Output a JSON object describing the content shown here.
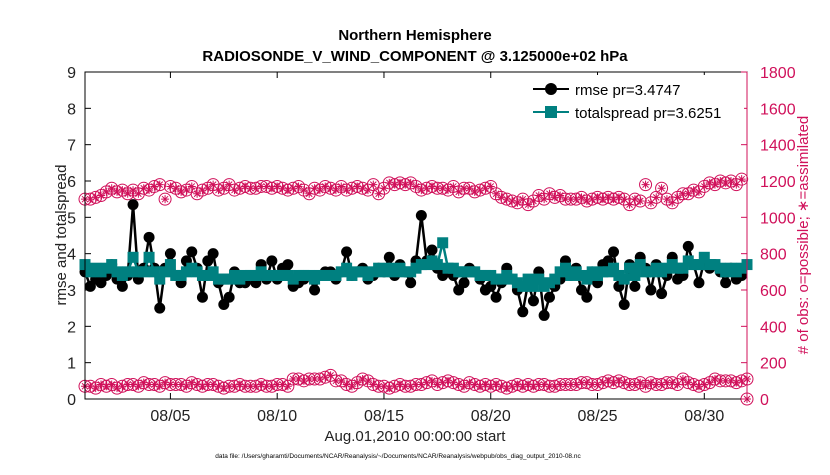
{
  "chart_data": {
    "type": "line",
    "title": "Northern Hemisphere",
    "subtitle": "RADIOSONDE_V_WIND_COMPONENT @ 3.125000e+02 hPa",
    "xlabel": "Aug.01,2010 00:00:00 start",
    "ylabel": "rmse and totalspread",
    "ylabel_right": "# of obs: o=possible; ∗=assimilated",
    "footnote": "data file: /Users/gharamti/Documents/NCAR/Reanalysis/~/Documents/NCAR/Reanalysis/webpub/obs_diag_output_2010-08.nc",
    "xlim": [
      1,
      32
    ],
    "ylim": [
      0,
      9
    ],
    "ylim_right": [
      0,
      1800
    ],
    "x_tick_labels": [
      "08/05",
      "08/10",
      "08/15",
      "08/20",
      "08/25",
      "08/30"
    ],
    "x_tick_values": [
      5,
      10,
      15,
      20,
      25,
      30
    ],
    "y_tick_labels": [
      "0",
      "1",
      "2",
      "3",
      "4",
      "5",
      "6",
      "7",
      "8",
      "9"
    ],
    "y_tick_values": [
      0,
      1,
      2,
      3,
      4,
      5,
      6,
      7,
      8,
      9
    ],
    "y_right_tick_labels": [
      "0",
      "200",
      "400",
      "600",
      "800",
      "1000",
      "1200",
      "1400",
      "1600",
      "1800"
    ],
    "y_right_tick_values": [
      0,
      200,
      400,
      600,
      800,
      1000,
      1200,
      1400,
      1600,
      1800
    ],
    "legend_position": "top-right",
    "x_step_days": 0.25,
    "x_start_day": 1,
    "series": [
      {
        "name": "rmse",
        "legend_label": "rmse pr=3.4747",
        "color": "#000000",
        "marker": "circle",
        "axis": "left",
        "values": [
          3.5,
          3.1,
          3.3,
          3.2,
          3.4,
          3.7,
          3.3,
          3.1,
          3.4,
          5.35,
          3.3,
          3.6,
          4.45,
          3.6,
          2.5,
          3.6,
          4.0,
          3.4,
          3.2,
          3.8,
          4.05,
          3.6,
          2.8,
          3.8,
          4.0,
          3.2,
          2.6,
          2.8,
          3.5,
          3.2,
          3.2,
          3.4,
          3.2,
          3.7,
          3.3,
          3.8,
          3.3,
          3.6,
          3.7,
          3.1,
          3.2,
          3.3,
          3.4,
          3.0,
          3.4,
          3.5,
          3.5,
          3.3,
          3.5,
          4.05,
          3.4,
          3.5,
          3.6,
          3.3,
          3.4,
          3.6,
          3.5,
          3.9,
          3.4,
          3.7,
          3.5,
          3.2,
          3.8,
          5.05,
          3.8,
          4.1,
          3.6,
          3.4,
          3.5,
          3.4,
          3.0,
          3.2,
          3.6,
          3.5,
          3.3,
          3.0,
          3.1,
          2.8,
          3.2,
          3.6,
          3.3,
          3.0,
          2.4,
          3.2,
          2.7,
          3.5,
          2.3,
          2.8,
          3.1,
          3.3,
          3.8,
          3.4,
          3.6,
          3.0,
          2.8,
          3.5,
          3.2,
          3.7,
          3.8,
          4.05,
          3.1,
          2.6,
          3.7,
          3.1,
          3.9,
          3.6,
          3.0,
          3.7,
          2.9,
          3.4,
          3.9,
          3.3,
          3.4,
          4.2,
          3.7,
          3.2,
          3.8,
          3.6,
          3.7,
          3.5,
          3.2,
          3.6,
          3.3,
          3.4,
          3.7
        ]
      },
      {
        "name": "totalspread",
        "legend_label": "totalspread pr=3.6251",
        "color": "#008080",
        "marker": "square",
        "axis": "left",
        "values": [
          3.7,
          3.5,
          3.6,
          3.5,
          3.6,
          3.7,
          3.5,
          3.4,
          3.5,
          3.9,
          3.5,
          3.5,
          3.9,
          3.5,
          3.3,
          3.5,
          3.7,
          3.4,
          3.4,
          3.5,
          3.6,
          3.5,
          3.4,
          3.4,
          3.5,
          3.3,
          3.3,
          3.3,
          3.4,
          3.3,
          3.4,
          3.4,
          3.4,
          3.5,
          3.4,
          3.4,
          3.4,
          3.4,
          3.4,
          3.3,
          3.4,
          3.4,
          3.4,
          3.3,
          3.4,
          3.4,
          3.4,
          3.4,
          3.5,
          3.6,
          3.4,
          3.5,
          3.5,
          3.4,
          3.5,
          3.6,
          3.5,
          3.6,
          3.5,
          3.6,
          3.5,
          3.5,
          3.6,
          3.7,
          3.7,
          3.8,
          3.7,
          4.3,
          3.6,
          3.6,
          3.5,
          3.5,
          3.5,
          3.5,
          3.4,
          3.4,
          3.4,
          3.3,
          3.3,
          3.4,
          3.3,
          3.2,
          3.1,
          3.3,
          3.1,
          3.3,
          3.1,
          3.2,
          3.3,
          3.5,
          3.6,
          3.4,
          3.5,
          3.4,
          3.3,
          3.5,
          3.4,
          3.5,
          3.5,
          3.6,
          3.4,
          3.3,
          3.6,
          3.4,
          3.7,
          3.5,
          3.5,
          3.6,
          3.5,
          3.6,
          3.7,
          3.6,
          3.6,
          3.8,
          3.7,
          3.7,
          3.9,
          3.7,
          3.7,
          3.6,
          3.5,
          3.6,
          3.5,
          3.6,
          3.7
        ]
      },
      {
        "name": "nposs",
        "legend_label": "",
        "color": "#d0105a",
        "marker": "circle-open",
        "axis": "right",
        "values": [
          1100,
          1100,
          1110,
          1120,
          1140,
          1160,
          1140,
          1150,
          1130,
          1150,
          1130,
          1160,
          1150,
          1170,
          1180,
          1100,
          1170,
          1160,
          1140,
          1150,
          1170,
          1130,
          1150,
          1160,
          1180,
          1150,
          1160,
          1180,
          1150,
          1160,
          1170,
          1160,
          1160,
          1170,
          1170,
          1160,
          1170,
          1160,
          1150,
          1160,
          1170,
          1150,
          1130,
          1160,
          1150,
          1170,
          1160,
          1150,
          1170,
          1150,
          1160,
          1170,
          1160,
          1150,
          1180,
          1130,
          1160,
          1190,
          1180,
          1190,
          1180,
          1190,
          1170,
          1150,
          1160,
          1170,
          1160,
          1160,
          1150,
          1170,
          1140,
          1160,
          1160,
          1140,
          1150,
          1160,
          1170,
          1130,
          1110,
          1100,
          1090,
          1080,
          1100,
          1070,
          1090,
          1120,
          1100,
          1130,
          1110,
          1120,
          1100,
          1100,
          1100,
          1110,
          1090,
          1100,
          1110,
          1100,
          1110,
          1100,
          1110,
          1100,
          1070,
          1100,
          1090,
          1180,
          1080,
          1110,
          1160,
          1100,
          1080,
          1110,
          1130,
          1130,
          1150,
          1140,
          1170,
          1190,
          1180,
          1200,
          1190,
          1200,
          1180,
          1210
        ]
      },
      {
        "name": "nused",
        "legend_label": "",
        "color": "#d0105a",
        "marker": "asterisk",
        "axis": "right",
        "values": [
          70,
          70,
          60,
          80,
          70,
          80,
          60,
          70,
          80,
          80,
          70,
          90,
          80,
          80,
          70,
          90,
          80,
          80,
          80,
          70,
          90,
          80,
          70,
          80,
          80,
          70,
          60,
          70,
          70,
          80,
          70,
          70,
          70,
          80,
          70,
          70,
          80,
          80,
          70,
          110,
          110,
          100,
          110,
          110,
          110,
          120,
          130,
          100,
          100,
          80,
          70,
          90,
          110,
          100,
          80,
          70,
          70,
          60,
          70,
          80,
          70,
          70,
          80,
          80,
          90,
          100,
          80,
          90,
          100,
          90,
          80,
          70,
          90,
          80,
          70,
          80,
          70,
          80,
          70,
          60,
          70,
          80,
          70,
          80,
          70,
          80,
          80,
          70,
          70,
          80,
          80,
          80,
          80,
          90,
          90,
          80,
          80,
          90,
          100,
          90,
          100,
          90,
          80,
          80,
          90,
          70,
          90,
          80,
          80,
          90,
          90,
          80,
          110,
          90,
          80,
          70,
          80,
          90,
          110,
          100,
          100,
          100,
          90,
          100,
          110
        ]
      }
    ],
    "zero_marker_right": {
      "x": 32,
      "value": 0
    }
  }
}
